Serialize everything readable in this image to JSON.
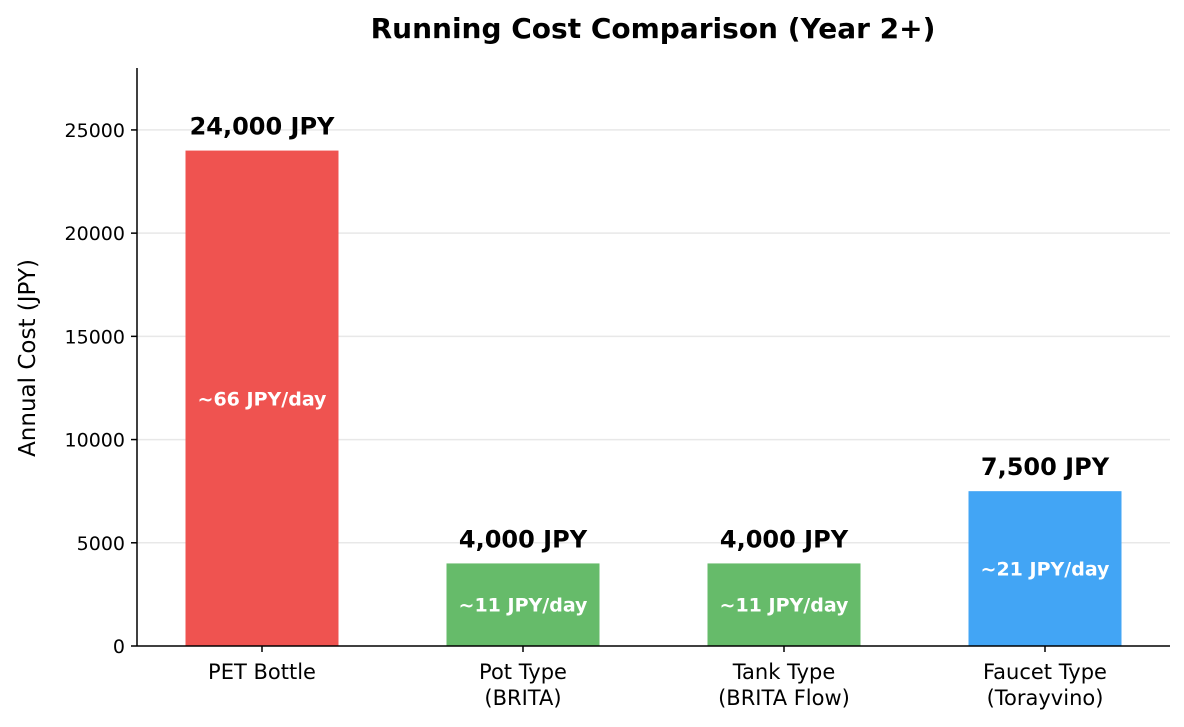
{
  "chart_data": {
    "type": "bar",
    "title": "Running Cost Comparison (Year 2+)",
    "xlabel": "",
    "ylabel": "Annual Cost (JPY)",
    "ylim": [
      0,
      28000
    ],
    "yticks": [
      0,
      5000,
      10000,
      15000,
      20000,
      25000
    ],
    "grid": true,
    "categories": [
      [
        "PET Bottle"
      ],
      [
        "Pot Type",
        "(BRITA)"
      ],
      [
        "Tank Type",
        "(BRITA Flow)"
      ],
      [
        "Faucet Type",
        "(Torayvino)"
      ]
    ],
    "values": [
      24000,
      4000,
      4000,
      7500
    ],
    "value_labels": [
      "24,000 JPY",
      "4,000 JPY",
      "4,000 JPY",
      "7,500 JPY"
    ],
    "daily_labels": [
      "~66 JPY/day",
      "~11 JPY/day",
      "~11 JPY/day",
      "~21 JPY/day"
    ],
    "colors": [
      "#ef5350",
      "#66bb6a",
      "#66bb6a",
      "#42a5f5"
    ]
  }
}
